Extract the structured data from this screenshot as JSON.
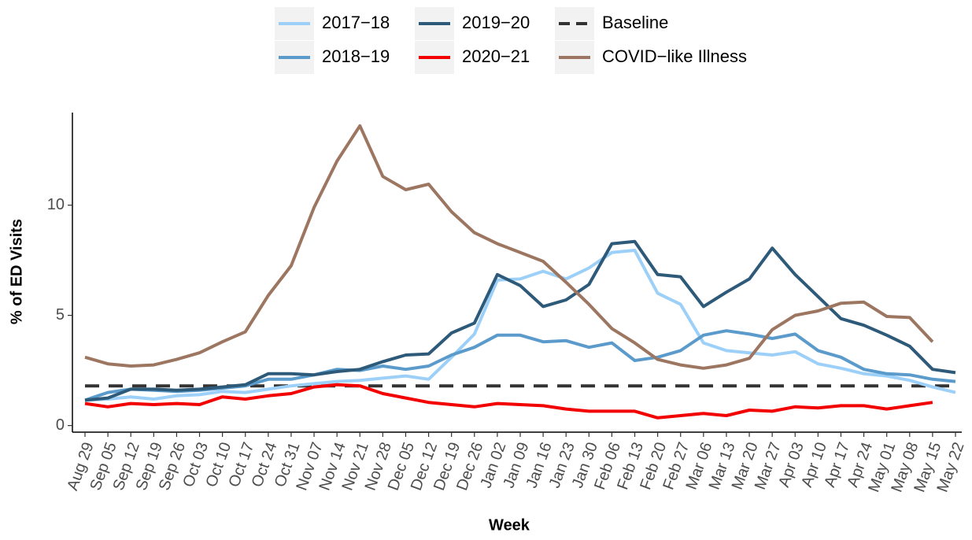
{
  "chart_data": {
    "type": "line",
    "x_label": "Week",
    "y_label": "% of ED Visits",
    "categories": [
      "Aug 29",
      "Sep 05",
      "Sep 12",
      "Sep 19",
      "Sep 26",
      "Oct 03",
      "Oct 10",
      "Oct 17",
      "Oct 24",
      "Oct 31",
      "Nov 07",
      "Nov 14",
      "Nov 21",
      "Nov 28",
      "Dec 05",
      "Dec 12",
      "Dec 19",
      "Dec 26",
      "Jan 02",
      "Jan 09",
      "Jan 16",
      "Jan 23",
      "Jan 30",
      "Feb 06",
      "Feb 13",
      "Feb 20",
      "Feb 27",
      "Mar 06",
      "Mar 13",
      "Mar 20",
      "Mar 27",
      "Apr 03",
      "Apr 10",
      "Apr 17",
      "Apr 24",
      "May 01",
      "May 08",
      "May 15",
      "May 22"
    ],
    "ylim": [
      -0.3,
      14.2
    ],
    "yticks": [
      0,
      5,
      10
    ],
    "series": [
      {
        "name": "2017−18",
        "color": "#9dd0f8",
        "values": [
          1.15,
          1.2,
          1.3,
          1.2,
          1.35,
          1.4,
          1.55,
          1.5,
          1.65,
          1.8,
          1.9,
          2.0,
          2.05,
          2.15,
          2.25,
          2.1,
          3.1,
          4.15,
          6.6,
          6.65,
          7.0,
          6.65,
          7.15,
          7.85,
          7.95,
          6.0,
          5.5,
          3.75,
          3.4,
          3.3,
          3.2,
          3.35,
          2.8,
          2.6,
          2.35,
          2.25,
          2.05,
          1.75,
          1.5
        ]
      },
      {
        "name": "2018−19",
        "color": "#5b9bcc",
        "values": [
          1.15,
          1.5,
          1.65,
          1.6,
          1.55,
          1.6,
          1.7,
          1.8,
          2.1,
          2.1,
          2.3,
          2.55,
          2.5,
          2.7,
          2.55,
          2.7,
          3.2,
          3.55,
          4.1,
          4.1,
          3.8,
          3.85,
          3.55,
          3.75,
          2.95,
          3.1,
          3.4,
          4.1,
          4.3,
          4.15,
          3.95,
          4.15,
          3.4,
          3.1,
          2.55,
          2.35,
          2.3,
          2.1,
          2.0
        ]
      },
      {
        "name": "2019−20",
        "color": "#2e5a7a",
        "values": [
          1.15,
          1.25,
          1.65,
          1.65,
          1.6,
          1.65,
          1.75,
          1.85,
          2.35,
          2.35,
          2.3,
          2.45,
          2.55,
          2.9,
          3.2,
          3.25,
          4.2,
          4.65,
          6.85,
          6.35,
          5.4,
          5.7,
          6.4,
          8.25,
          8.35,
          6.85,
          6.75,
          5.4,
          6.05,
          6.65,
          8.05,
          6.85,
          5.85,
          4.85,
          4.55,
          4.1,
          3.6,
          2.55,
          2.4
        ]
      },
      {
        "name": "2020−21",
        "color": "#f20000",
        "values": [
          1.0,
          0.85,
          1.0,
          0.95,
          1.0,
          0.95,
          1.3,
          1.2,
          1.35,
          1.45,
          1.75,
          1.85,
          1.8,
          1.45,
          1.25,
          1.05,
          0.95,
          0.85,
          1.0,
          0.95,
          0.9,
          0.75,
          0.65,
          0.65,
          0.65,
          0.35,
          0.45,
          0.55,
          0.45,
          0.7,
          0.65,
          0.85,
          0.8,
          0.9,
          0.9,
          0.75,
          0.9,
          1.05,
          null
        ]
      },
      {
        "name": "COVID−like Illness",
        "color": "#9c7660",
        "values": [
          3.1,
          2.8,
          2.7,
          2.75,
          3.0,
          3.3,
          3.8,
          4.25,
          5.9,
          7.25,
          9.9,
          12.0,
          13.6,
          11.3,
          10.7,
          10.95,
          9.7,
          8.75,
          8.25,
          7.85,
          7.45,
          6.5,
          5.5,
          4.4,
          3.75,
          3.0,
          2.75,
          2.6,
          2.75,
          3.05,
          4.35,
          5.0,
          5.2,
          5.55,
          5.6,
          4.95,
          4.9,
          3.8,
          null
        ]
      }
    ],
    "baseline": {
      "name": "Baseline",
      "value": 1.8,
      "color": "#333333"
    }
  }
}
